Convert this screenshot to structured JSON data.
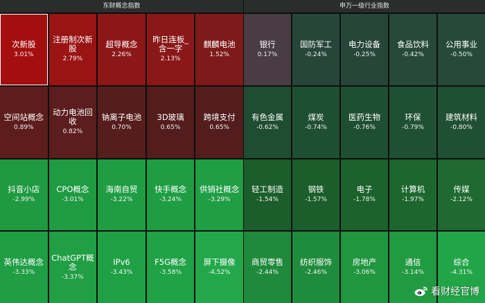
{
  "left_panel": {
    "title": "东财概念指数",
    "tiles": [
      {
        "name": "次新股",
        "pct": "3.01%",
        "color": "#a50e0e",
        "selected": true
      },
      {
        "name": "注册制次新股",
        "pct": "2.79%",
        "color": "#9a1414"
      },
      {
        "name": "超导概念",
        "pct": "2.26%",
        "color": "#8c1717"
      },
      {
        "name": "昨日连板_含一字",
        "pct": "2.13%",
        "color": "#8a1818"
      },
      {
        "name": "麒麟电池",
        "pct": "1.52%",
        "color": "#7f1a1a"
      },
      {
        "name": "空间站概念",
        "pct": "0.89%",
        "color": "#5e1d1d"
      },
      {
        "name": "动力电池回收",
        "pct": "0.82%",
        "color": "#5b1d1d"
      },
      {
        "name": "钠离子电池",
        "pct": "0.70%",
        "color": "#561d1d"
      },
      {
        "name": "3D玻璃",
        "pct": "0.65%",
        "color": "#531d1d"
      },
      {
        "name": "跨境支付",
        "pct": "0.65%",
        "color": "#531d1d"
      },
      {
        "name": "抖音小店",
        "pct": "-2.99%",
        "color": "#1f9a41"
      },
      {
        "name": "CPO概念",
        "pct": "-3.01%",
        "color": "#1f9b42"
      },
      {
        "name": "海南自贸",
        "pct": "-3.22%",
        "color": "#1f9d43"
      },
      {
        "name": "快手概念",
        "pct": "-3.24%",
        "color": "#1f9d43"
      },
      {
        "name": "供销社概念",
        "pct": "-3.29%",
        "color": "#1f9e44"
      },
      {
        "name": "英伟达概念",
        "pct": "-3.33%",
        "color": "#1f9e44"
      },
      {
        "name": "ChatGPT概念",
        "pct": "-3.37%",
        "color": "#209f44"
      },
      {
        "name": "IPv6",
        "pct": "-3.43%",
        "color": "#20a045"
      },
      {
        "name": "F5G概念",
        "pct": "-3.58%",
        "color": "#20a246"
      },
      {
        "name": "屏下摄像",
        "pct": "-4.52%",
        "color": "#22a84a"
      }
    ]
  },
  "right_panel": {
    "title": "申万一级行业指数",
    "tiles": [
      {
        "name": "银行",
        "pct": "0.17%",
        "color": "#4a3c43"
      },
      {
        "name": "国防军工",
        "pct": "-0.24%",
        "color": "#26463a"
      },
      {
        "name": "电力设备",
        "pct": "-0.25%",
        "color": "#26463a"
      },
      {
        "name": "食品饮料",
        "pct": "-0.42%",
        "color": "#264939"
      },
      {
        "name": "公用事业",
        "pct": "-0.50%",
        "color": "#264a39"
      },
      {
        "name": "有色金属",
        "pct": "-0.62%",
        "color": "#1f4d32"
      },
      {
        "name": "煤炭",
        "pct": "-0.74%",
        "color": "#1f4f32"
      },
      {
        "name": "医药生物",
        "pct": "-0.76%",
        "color": "#1f4f32"
      },
      {
        "name": "环保",
        "pct": "-0.79%",
        "color": "#1f5033"
      },
      {
        "name": "建筑材料",
        "pct": "-0.80%",
        "color": "#1f5033"
      },
      {
        "name": "轻工制造",
        "pct": "-1.54%",
        "color": "#1b5e2b"
      },
      {
        "name": "钢铁",
        "pct": "-1.57%",
        "color": "#1b5e2b"
      },
      {
        "name": "电子",
        "pct": "-1.78%",
        "color": "#1c622d"
      },
      {
        "name": "计算机",
        "pct": "-1.97%",
        "color": "#1d672f"
      },
      {
        "name": "传媒",
        "pct": "-2.12%",
        "color": "#1e6a30"
      },
      {
        "name": "商贸零售",
        "pct": "-2.44%",
        "color": "#1f8a3c"
      },
      {
        "name": "纺织服饰",
        "pct": "-2.46%",
        "color": "#1f8b3c"
      },
      {
        "name": "房地产",
        "pct": "-3.06%",
        "color": "#20963f"
      },
      {
        "name": "通信",
        "pct": "-3.14%",
        "color": "#219a41"
      },
      {
        "name": "综合",
        "pct": "-4.31%",
        "color": "#22a547"
      }
    ]
  },
  "watermark": {
    "text": "看财经官博",
    "icon": "weibo-icon"
  }
}
